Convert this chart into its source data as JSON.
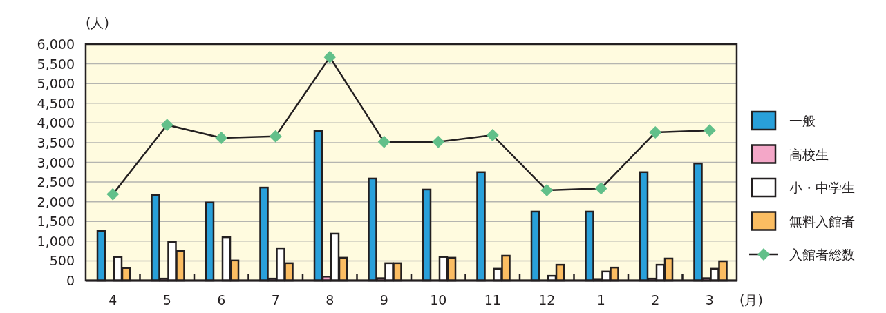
{
  "chart_data": {
    "type": "bar",
    "ylabel": "(人)",
    "xlabel": "(月)",
    "categories": [
      "4",
      "5",
      "6",
      "7",
      "8",
      "9",
      "10",
      "11",
      "12",
      "1",
      "2",
      "3"
    ],
    "series": [
      {
        "name": "一般",
        "color": "#29a0da",
        "values": [
          1260,
          2170,
          1980,
          2360,
          3800,
          2590,
          2310,
          2750,
          1750,
          1750,
          2750,
          2970
        ]
      },
      {
        "name": "高校生",
        "color": "#f4a7c8",
        "values": [
          null,
          50,
          null,
          50,
          100,
          60,
          null,
          null,
          null,
          40,
          50,
          60
        ]
      },
      {
        "name": "小・中学生",
        "color": "#ffffff",
        "values": [
          600,
          980,
          1100,
          820,
          1190,
          440,
          600,
          300,
          120,
          230,
          400,
          300
        ]
      },
      {
        "name": "無料入館者",
        "color": "#fbbd62",
        "values": [
          320,
          750,
          510,
          440,
          580,
          440,
          580,
          630,
          400,
          330,
          560,
          490
        ]
      },
      {
        "name": "入館者総数",
        "type": "line",
        "color": "#62c08a",
        "marker": "diamond",
        "values": [
          2190,
          3950,
          3620,
          3660,
          5670,
          3520,
          3520,
          3690,
          2290,
          2340,
          3760,
          3810
        ]
      }
    ],
    "ylim": [
      0,
      6000
    ],
    "yticks": [
      0,
      500,
      {
        "value": 1000,
        "label": "1,000"
      },
      {
        "value": 1500,
        "label": "1,500"
      },
      {
        "value": 2000,
        "label": "2,000"
      },
      {
        "value": 2500,
        "label": "2,500"
      },
      {
        "value": 3000,
        "label": "3,000"
      },
      {
        "value": 3500,
        "label": "3,500"
      },
      {
        "value": 4000,
        "label": "4,000"
      },
      {
        "value": 4500,
        "label": "4,500"
      },
      {
        "value": 5000,
        "label": "5,000"
      },
      {
        "value": 5500,
        "label": "5,500"
      },
      {
        "value": 6000,
        "label": "6,000"
      }
    ],
    "grid": "y",
    "legend": "right"
  }
}
